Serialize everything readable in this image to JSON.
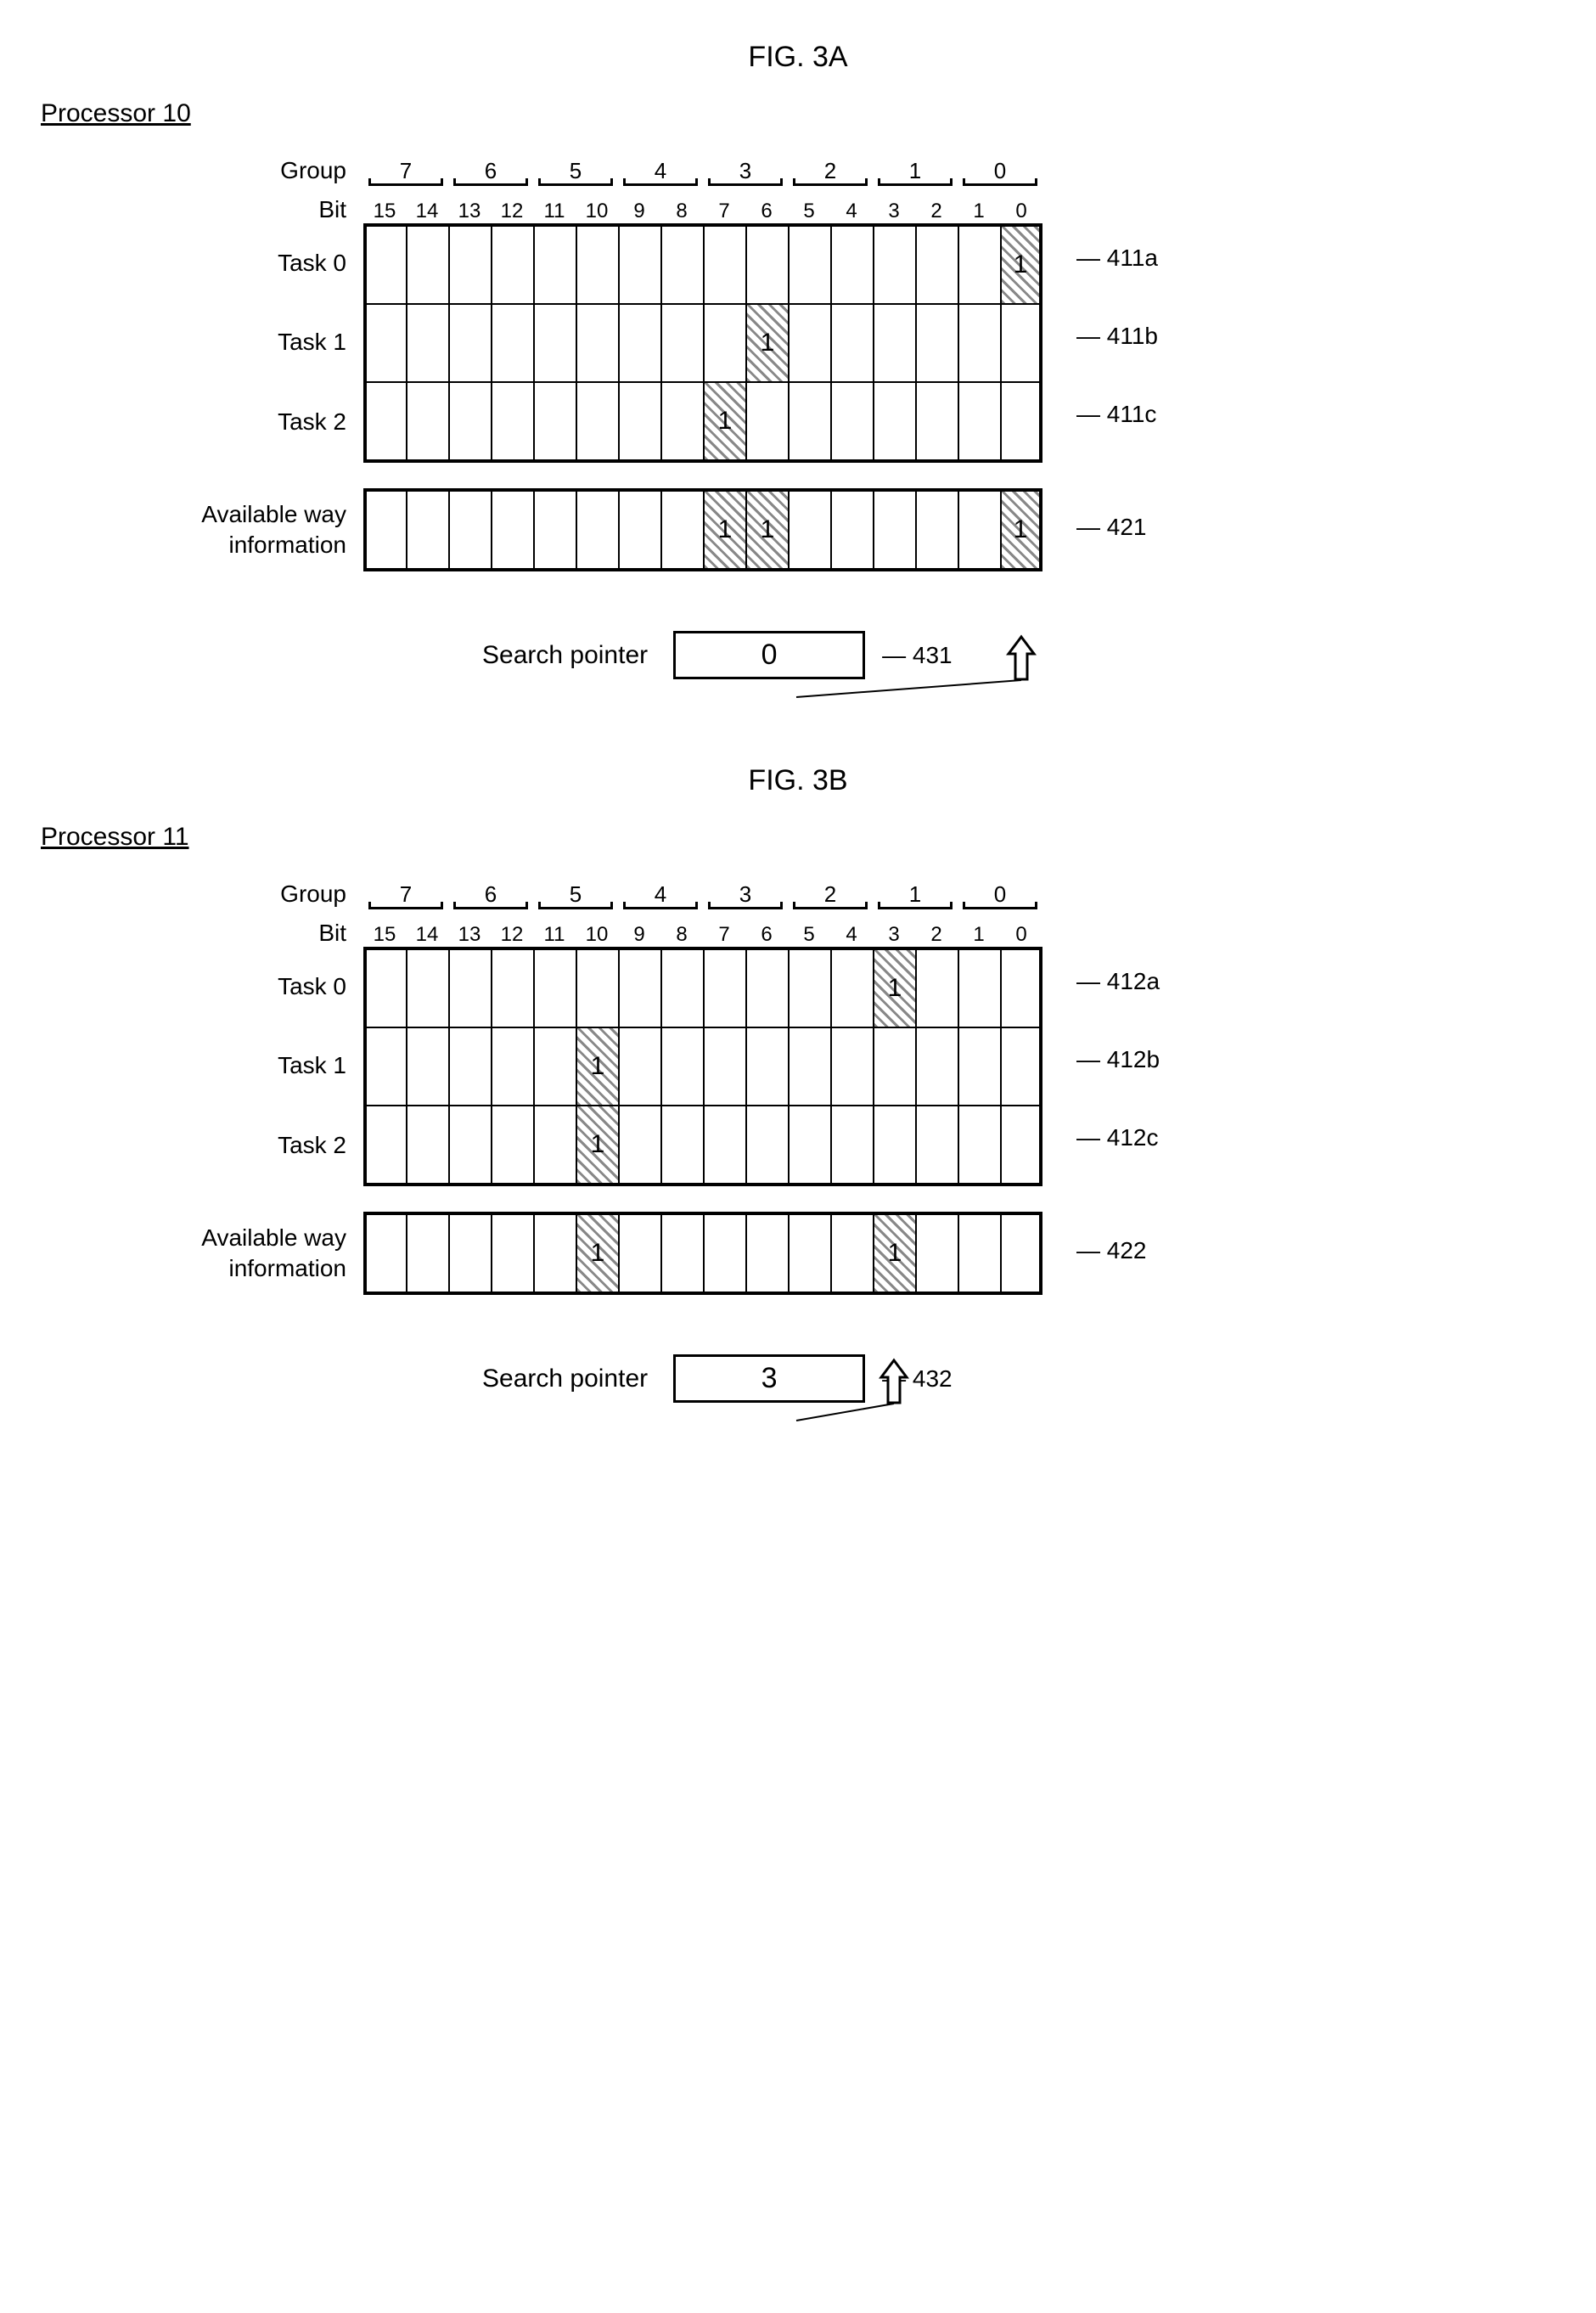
{
  "figA": {
    "title": "FIG. 3A",
    "processor": "Processor 10",
    "groupLabel": "Group",
    "bitLabel": "Bit",
    "groups": [
      "7",
      "6",
      "5",
      "4",
      "3",
      "2",
      "1",
      "0"
    ],
    "bits": [
      "15",
      "14",
      "13",
      "12",
      "11",
      "10",
      "9",
      "8",
      "7",
      "6",
      "5",
      "4",
      "3",
      "2",
      "1",
      "0"
    ],
    "rows": [
      {
        "label": "Task 0",
        "ref": "411a",
        "set": [
          0
        ]
      },
      {
        "label": "Task 1",
        "ref": "411b",
        "set": [
          6
        ]
      },
      {
        "label": "Task 2",
        "ref": "411c",
        "set": [
          7
        ]
      }
    ],
    "avail": {
      "label_l1": "Available way",
      "label_l2": "information",
      "ref": "421",
      "set": [
        7,
        6,
        0
      ]
    },
    "searchPointer": {
      "label": "Search pointer",
      "value": "0",
      "ref": "431",
      "arrowBit": 0
    }
  },
  "figB": {
    "title": "FIG. 3B",
    "processor": "Processor 11",
    "groupLabel": "Group",
    "bitLabel": "Bit",
    "groups": [
      "7",
      "6",
      "5",
      "4",
      "3",
      "2",
      "1",
      "0"
    ],
    "bits": [
      "15",
      "14",
      "13",
      "12",
      "11",
      "10",
      "9",
      "8",
      "7",
      "6",
      "5",
      "4",
      "3",
      "2",
      "1",
      "0"
    ],
    "rows": [
      {
        "label": "Task 0",
        "ref": "412a",
        "set": [
          3
        ]
      },
      {
        "label": "Task 1",
        "ref": "412b",
        "set": [
          10
        ]
      },
      {
        "label": "Task 2",
        "ref": "412c",
        "set": [
          10
        ]
      }
    ],
    "avail": {
      "label_l1": "Available way",
      "label_l2": "information",
      "ref": "422",
      "set": [
        10,
        3
      ]
    },
    "searchPointer": {
      "label": "Search pointer",
      "value": "3",
      "ref": "432",
      "arrowBit": 3
    }
  },
  "layout": {
    "cellW": 50,
    "cellsLeft": 280,
    "numBits": 16
  }
}
